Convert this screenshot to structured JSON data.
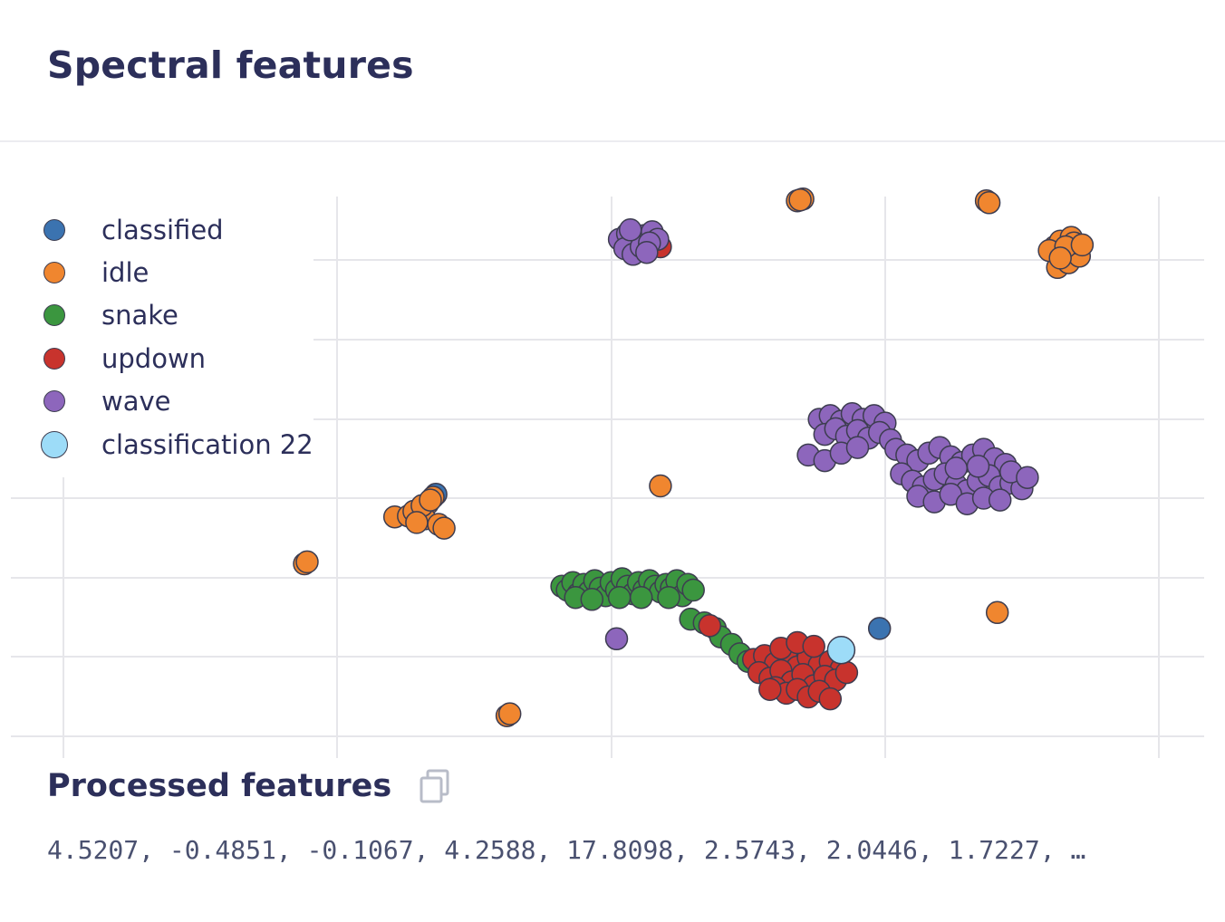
{
  "header": {
    "title": "Spectral features"
  },
  "processed": {
    "title": "Processed features",
    "copy_icon": "copy-icon",
    "values_text": "4.5207, -0.4851, -0.1067, 4.2588, 17.8098, 2.5743, 2.0446, 1.7227, …"
  },
  "chart_data": {
    "type": "scatter",
    "grid": true,
    "legend_placement": "top-left",
    "xlim": [
      -1,
      3
    ],
    "ylim": [
      -1.3,
      4.9
    ],
    "series": [
      {
        "name": "classified",
        "color": "#3b73b0",
        "points": [
          [
            0.36,
            1.28
          ],
          [
            1.98,
            -0.15
          ]
        ]
      },
      {
        "name": "idle",
        "color": "#f0862f",
        "points": [
          [
            1.68,
            4.41
          ],
          [
            1.7,
            4.43
          ],
          [
            1.69,
            4.42
          ],
          [
            2.37,
            4.41
          ],
          [
            2.38,
            4.39
          ],
          [
            2.62,
            3.92
          ],
          [
            2.64,
            3.98
          ],
          [
            2.66,
            3.85
          ],
          [
            2.68,
            4.02
          ],
          [
            2.65,
            3.78
          ],
          [
            2.7,
            3.9
          ],
          [
            2.63,
            3.7
          ],
          [
            2.67,
            3.75
          ],
          [
            2.71,
            3.82
          ],
          [
            2.6,
            3.88
          ],
          [
            2.69,
            3.96
          ],
          [
            2.66,
            3.92
          ],
          [
            2.72,
            3.94
          ],
          [
            2.64,
            3.8
          ],
          [
            0.21,
            1.04
          ],
          [
            0.26,
            1.05
          ],
          [
            0.3,
            1.12
          ],
          [
            0.33,
            1.18
          ],
          [
            0.35,
            1.25
          ],
          [
            0.32,
            1.02
          ],
          [
            0.37,
            0.96
          ],
          [
            0.39,
            0.92
          ],
          [
            0.28,
            1.1
          ],
          [
            0.31,
            1.16
          ],
          [
            0.34,
            1.22
          ],
          [
            0.29,
            0.98
          ],
          [
            -0.12,
            0.54
          ],
          [
            -0.11,
            0.56
          ],
          [
            1.18,
            1.37
          ],
          [
            2.41,
            0.02
          ],
          [
            0.62,
            -1.08
          ],
          [
            0.63,
            -1.06
          ]
        ]
      },
      {
        "name": "snake",
        "color": "#3b963f",
        "points": [
          [
            0.82,
            0.3
          ],
          [
            0.84,
            0.26
          ],
          [
            0.86,
            0.34
          ],
          [
            0.88,
            0.22
          ],
          [
            0.9,
            0.32
          ],
          [
            0.92,
            0.24
          ],
          [
            0.94,
            0.36
          ],
          [
            0.96,
            0.28
          ],
          [
            0.98,
            0.2
          ],
          [
            1.0,
            0.34
          ],
          [
            1.02,
            0.26
          ],
          [
            1.04,
            0.38
          ],
          [
            1.06,
            0.3
          ],
          [
            1.08,
            0.22
          ],
          [
            1.1,
            0.34
          ],
          [
            1.12,
            0.26
          ],
          [
            1.14,
            0.36
          ],
          [
            1.16,
            0.3
          ],
          [
            1.18,
            0.24
          ],
          [
            1.2,
            0.32
          ],
          [
            1.22,
            0.28
          ],
          [
            1.24,
            0.36
          ],
          [
            1.26,
            0.2
          ],
          [
            1.28,
            0.32
          ],
          [
            1.3,
            0.26
          ],
          [
            0.87,
            0.18
          ],
          [
            0.93,
            0.16
          ],
          [
            1.03,
            0.18
          ],
          [
            1.11,
            0.18
          ],
          [
            1.21,
            0.18
          ],
          [
            1.29,
            -0.05
          ],
          [
            1.34,
            -0.09
          ],
          [
            1.38,
            -0.15
          ],
          [
            1.4,
            -0.24
          ],
          [
            1.44,
            -0.32
          ],
          [
            1.47,
            -0.42
          ],
          [
            1.5,
            -0.5
          ]
        ]
      },
      {
        "name": "updown",
        "color": "#c8332d",
        "points": [
          [
            1.36,
            -0.12
          ],
          [
            1.14,
            3.95
          ],
          [
            1.18,
            3.92
          ],
          [
            1.52,
            -0.48
          ],
          [
            1.56,
            -0.44
          ],
          [
            1.6,
            -0.52
          ],
          [
            1.64,
            -0.4
          ],
          [
            1.68,
            -0.56
          ],
          [
            1.72,
            -0.46
          ],
          [
            1.76,
            -0.54
          ],
          [
            1.8,
            -0.5
          ],
          [
            1.84,
            -0.58
          ],
          [
            1.54,
            -0.62
          ],
          [
            1.58,
            -0.68
          ],
          [
            1.62,
            -0.6
          ],
          [
            1.66,
            -0.72
          ],
          [
            1.7,
            -0.64
          ],
          [
            1.74,
            -0.76
          ],
          [
            1.78,
            -0.66
          ],
          [
            1.82,
            -0.7
          ],
          [
            1.86,
            -0.62
          ],
          [
            1.6,
            -0.78
          ],
          [
            1.64,
            -0.84
          ],
          [
            1.68,
            -0.8
          ],
          [
            1.72,
            -0.88
          ],
          [
            1.76,
            -0.82
          ],
          [
            1.8,
            -0.9
          ],
          [
            1.62,
            -0.36
          ],
          [
            1.68,
            -0.3
          ],
          [
            1.74,
            -0.34
          ],
          [
            1.58,
            -0.8
          ]
        ]
      },
      {
        "name": "wave",
        "color": "#8d66bc",
        "points": [
          [
            1.03,
            4.0
          ],
          [
            1.06,
            4.06
          ],
          [
            1.09,
            3.98
          ],
          [
            1.12,
            4.04
          ],
          [
            1.15,
            4.08
          ],
          [
            1.17,
            4.0
          ],
          [
            1.05,
            3.9
          ],
          [
            1.08,
            3.84
          ],
          [
            1.11,
            3.92
          ],
          [
            1.14,
            3.96
          ],
          [
            1.07,
            4.1
          ],
          [
            1.13,
            3.86
          ],
          [
            1.02,
            -0.26
          ],
          [
            1.76,
            2.08
          ],
          [
            1.8,
            2.12
          ],
          [
            1.84,
            2.06
          ],
          [
            1.88,
            2.14
          ],
          [
            1.92,
            2.08
          ],
          [
            1.96,
            2.12
          ],
          [
            2.0,
            2.04
          ],
          [
            1.78,
            1.92
          ],
          [
            1.82,
            1.98
          ],
          [
            1.86,
            1.9
          ],
          [
            1.9,
            1.96
          ],
          [
            1.94,
            1.88
          ],
          [
            1.98,
            1.94
          ],
          [
            2.02,
            1.86
          ],
          [
            1.72,
            1.7
          ],
          [
            1.78,
            1.64
          ],
          [
            1.84,
            1.72
          ],
          [
            1.9,
            1.78
          ],
          [
            2.04,
            1.76
          ],
          [
            2.08,
            1.7
          ],
          [
            2.12,
            1.64
          ],
          [
            2.16,
            1.72
          ],
          [
            2.2,
            1.78
          ],
          [
            2.24,
            1.68
          ],
          [
            2.28,
            1.62
          ],
          [
            2.32,
            1.7
          ],
          [
            2.36,
            1.76
          ],
          [
            2.4,
            1.66
          ],
          [
            2.44,
            1.6
          ],
          [
            2.06,
            1.5
          ],
          [
            2.1,
            1.42
          ],
          [
            2.14,
            1.36
          ],
          [
            2.18,
            1.44
          ],
          [
            2.22,
            1.5
          ],
          [
            2.26,
            1.38
          ],
          [
            2.3,
            1.32
          ],
          [
            2.34,
            1.42
          ],
          [
            2.38,
            1.48
          ],
          [
            2.42,
            1.36
          ],
          [
            2.46,
            1.4
          ],
          [
            2.5,
            1.34
          ],
          [
            2.12,
            1.26
          ],
          [
            2.18,
            1.2
          ],
          [
            2.24,
            1.28
          ],
          [
            2.3,
            1.18
          ],
          [
            2.36,
            1.24
          ],
          [
            2.42,
            1.22
          ],
          [
            2.26,
            1.56
          ],
          [
            2.34,
            1.58
          ],
          [
            2.46,
            1.52
          ],
          [
            2.52,
            1.46
          ]
        ]
      },
      {
        "name": "classification 22",
        "color": "#9ddcf8",
        "highlight": true,
        "points": [
          [
            1.84,
            -0.38
          ]
        ]
      }
    ]
  }
}
